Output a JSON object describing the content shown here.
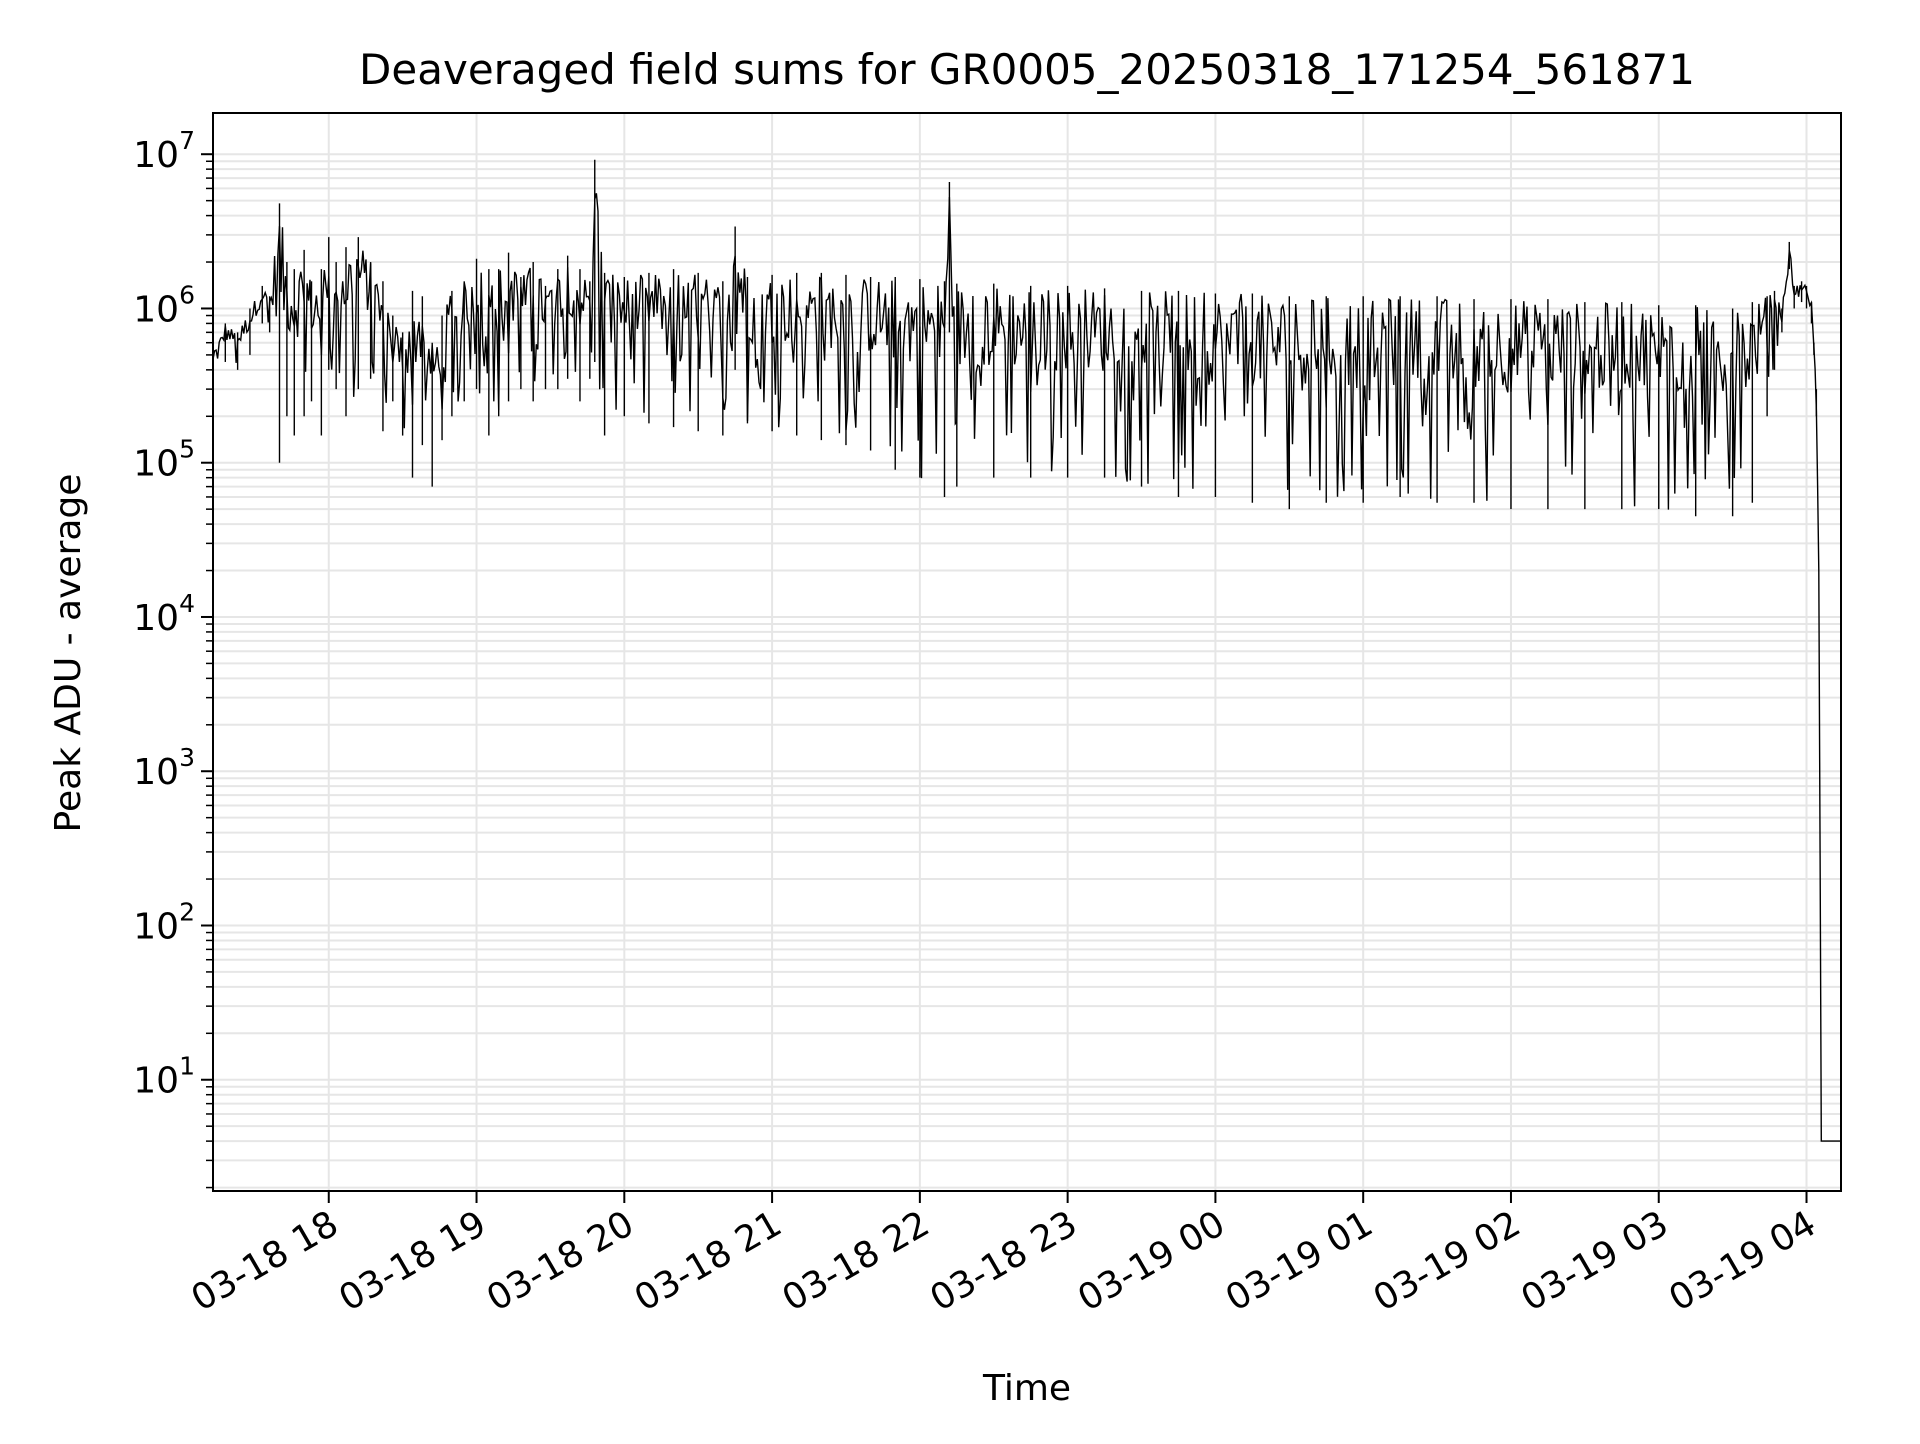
{
  "chart_data": {
    "type": "line",
    "title": "Deaveraged field sums for GR0005_20250318_171254_561871",
    "xlabel": "Time",
    "ylabel": "Peak ADU - average",
    "yscale": "log",
    "grid": true,
    "legend": "none",
    "line_color": "#000000",
    "grid_color": "#e6e6e6",
    "xlim": [
      "2025-03-18 17:13",
      "2025-03-19 04:14"
    ],
    "ylim": [
      1.9,
      18500000
    ],
    "x_tick_labels": [
      "03-18 18",
      "03-18 19",
      "03-18 20",
      "03-18 21",
      "03-18 22",
      "03-18 23",
      "03-19 00",
      "03-19 01",
      "03-19 02",
      "03-19 03",
      "03-19 04"
    ],
    "y_tick_labels": [
      {
        "base": "10",
        "exp": "1",
        "value": 10
      },
      {
        "base": "10",
        "exp": "2",
        "value": 100
      },
      {
        "base": "10",
        "exp": "3",
        "value": 1000
      },
      {
        "base": "10",
        "exp": "4",
        "value": 10000
      },
      {
        "base": "10",
        "exp": "5",
        "value": 100000
      },
      {
        "base": "10",
        "exp": "6",
        "value": 1000000
      },
      {
        "base": "10",
        "exp": "7",
        "value": 10000000
      }
    ],
    "series": [
      {
        "x": [
          "2025-03-18 17:13",
          "2025-03-18 17:18",
          "2025-03-18 17:23",
          "2025-03-18 17:28",
          "2025-03-18 17:33",
          "2025-03-18 17:36",
          "2025-03-18 17:40",
          "2025-03-18 17:43",
          "2025-03-18 17:46",
          "2025-03-18 17:50",
          "2025-03-18 17:53",
          "2025-03-18 17:57",
          "2025-03-18 18:00",
          "2025-03-18 18:03",
          "2025-03-18 18:07",
          "2025-03-18 18:12",
          "2025-03-18 18:17",
          "2025-03-18 18:22",
          "2025-03-18 18:26",
          "2025-03-18 18:30",
          "2025-03-18 18:34",
          "2025-03-18 18:38",
          "2025-03-18 18:42",
          "2025-03-18 18:46",
          "2025-03-18 18:50",
          "2025-03-18 18:55",
          "2025-03-18 19:00",
          "2025-03-18 19:05",
          "2025-03-18 19:09",
          "2025-03-18 19:13",
          "2025-03-18 19:18",
          "2025-03-18 19:23",
          "2025-03-18 19:28",
          "2025-03-18 19:33",
          "2025-03-18 19:37",
          "2025-03-18 19:42",
          "2025-03-18 19:46",
          "2025-03-18 19:48",
          "2025-03-18 19:52",
          "2025-03-18 20:00",
          "2025-03-18 20:10",
          "2025-03-18 20:20",
          "2025-03-18 20:30",
          "2025-03-18 20:40",
          "2025-03-18 20:45",
          "2025-03-18 20:50",
          "2025-03-18 21:00",
          "2025-03-18 21:10",
          "2025-03-18 21:20",
          "2025-03-18 21:30",
          "2025-03-18 21:40",
          "2025-03-18 21:50",
          "2025-03-18 22:00",
          "2025-03-18 22:10",
          "2025-03-18 22:12",
          "2025-03-18 22:15",
          "2025-03-18 22:30",
          "2025-03-18 22:45",
          "2025-03-18 23:00",
          "2025-03-18 23:15",
          "2025-03-18 23:30",
          "2025-03-18 23:45",
          "2025-03-19 00:00",
          "2025-03-19 00:15",
          "2025-03-19 00:30",
          "2025-03-19 00:45",
          "2025-03-19 01:00",
          "2025-03-19 01:15",
          "2025-03-19 01:30",
          "2025-03-19 01:45",
          "2025-03-19 02:00",
          "2025-03-19 02:15",
          "2025-03-19 02:30",
          "2025-03-19 02:45",
          "2025-03-19 03:00",
          "2025-03-19 03:15",
          "2025-03-19 03:30",
          "2025-03-19 03:38",
          "2025-03-19 03:44",
          "2025-03-19 03:47",
          "2025-03-19 03:50",
          "2025-03-19 03:53",
          "2025-03-19 03:55",
          "2025-03-19 03:58",
          "2025-03-19 04:00",
          "2025-03-19 04:02",
          "2025-03-19 04:03",
          "2025-03-19 04:04",
          "2025-03-19 04:05",
          "2025-03-19 04:06",
          "2025-03-19 04:08",
          "2025-03-19 04:10",
          "2025-03-19 04:12",
          "2025-03-19 04:14"
        ],
        "high": [
          500000,
          800000,
          700000,
          1000000,
          1400000,
          1200000,
          4800000,
          2000000,
          1800000,
          2400000,
          1500000,
          1800000,
          2900000,
          2000000,
          2500000,
          2900000,
          2000000,
          1500000,
          900000,
          700000,
          1300000,
          1200000,
          600000,
          900000,
          1300000,
          1500000,
          2100000,
          1800000,
          1800000,
          2300000,
          1600000,
          2000000,
          1400000,
          1800000,
          2200000,
          1800000,
          1500000,
          9200000,
          1700000,
          1600000,
          1700000,
          1800000,
          1700000,
          1500000,
          3400000,
          1600000,
          1650000,
          1700000,
          1700000,
          1650000,
          1600000,
          1600000,
          1550000,
          1500000,
          6600000,
          1450000,
          1450000,
          1400000,
          1400000,
          1350000,
          1300000,
          1300000,
          1250000,
          1250000,
          1200000,
          1200000,
          1200000,
          1200000,
          1200000,
          1150000,
          1150000,
          1150000,
          1100000,
          1100000,
          1050000,
          1050000,
          1000000,
          1100000,
          1200000,
          1300000,
          1000000,
          2700000,
          1400000,
          1500000,
          1400000,
          1100000,
          600000,
          300000,
          20000,
          4,
          4,
          4,
          4,
          4
        ],
        "low": [
          400000,
          450000,
          400000,
          500000,
          800000,
          700000,
          100000,
          200000,
          150000,
          200000,
          250000,
          150000,
          400000,
          300000,
          200000,
          300000,
          350000,
          160000,
          250000,
          150000,
          80000,
          130000,
          70000,
          140000,
          200000,
          250000,
          300000,
          150000,
          200000,
          250000,
          300000,
          250000,
          300000,
          300000,
          350000,
          250000,
          350000,
          450000,
          150000,
          200000,
          180000,
          170000,
          160000,
          150000,
          400000,
          180000,
          160000,
          150000,
          140000,
          130000,
          120000,
          90000,
          80000,
          60000,
          700000,
          70000,
          80000,
          80000,
          80000,
          80000,
          70000,
          60000,
          60000,
          55000,
          50000,
          55000,
          55000,
          60000,
          55000,
          55000,
          50000,
          50000,
          50000,
          50000,
          50000,
          45000,
          45000,
          55000,
          200000,
          400000,
          700000,
          1800000,
          1000000,
          1100000,
          1000000,
          800000,
          500000,
          200000,
          20000,
          4,
          4,
          4,
          4,
          4
        ]
      }
    ]
  }
}
